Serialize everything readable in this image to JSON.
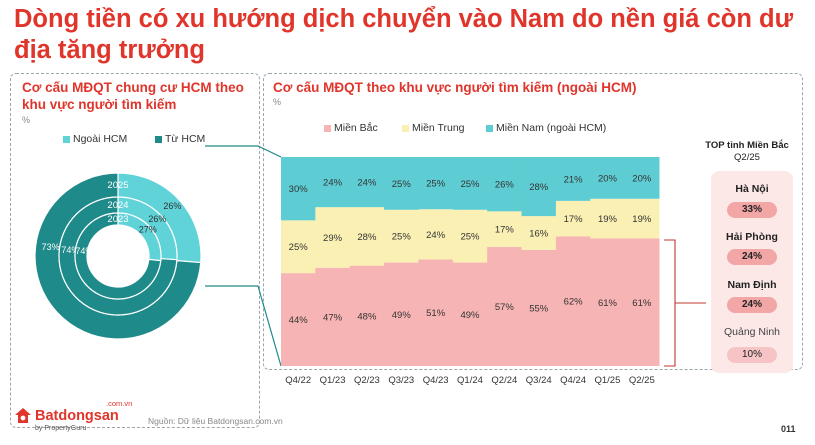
{
  "headline": "Dòng tiền có xu hướng dịch chuyển vào Nam do nền giá còn dư địa tăng trưởng",
  "left_panel": {
    "title": "Cơ cấu MĐQT chung cư HCM theo khu vực người tìm kiếm",
    "unit": "%",
    "legend": [
      "Ngoài HCM",
      "Từ HCM"
    ]
  },
  "right_panel": {
    "title": "Cơ cấu MĐQT theo khu vực người tìm kiếm (ngoài HCM)",
    "unit": "%",
    "legend": [
      "Miền Bắc",
      "Miền Trung",
      "Miền Nam (ngoài HCM)"
    ]
  },
  "top_box": {
    "title_line1": "TOP tỉnh Miền Bắc",
    "title_line2": "Q2/25",
    "provinces": [
      {
        "name": "Hà Nội",
        "value": "33%"
      },
      {
        "name": "Hải Phòng",
        "value": "24%"
      },
      {
        "name": "Nam Định",
        "value": "24%"
      },
      {
        "name": "Quảng Ninh",
        "value": "10%"
      }
    ]
  },
  "colors": {
    "accent": "#e0352b",
    "outside_hcm": "#5fd3d8",
    "from_hcm": "#1e8a8a",
    "north": "#f7b4b4",
    "central": "#faf0b4",
    "south": "#5ecdd3"
  },
  "chart_data": [
    {
      "type": "pie",
      "subtype": "multi-ring donut",
      "title": "Cơ cấu MĐQT chung cư HCM theo khu vực người tìm kiếm",
      "categories": [
        "Ngoài HCM",
        "Từ HCM"
      ],
      "rings": [
        {
          "name": "2025",
          "values": [
            26,
            73
          ],
          "labels": [
            "26%",
            "73%"
          ]
        },
        {
          "name": "2024",
          "values": [
            26,
            74
          ],
          "labels": [
            "26%",
            "74%"
          ]
        },
        {
          "name": "2023",
          "values": [
            27,
            74
          ],
          "labels": [
            "27%",
            "74%"
          ]
        }
      ]
    },
    {
      "type": "bar",
      "subtype": "100% stacked",
      "title": "Cơ cấu MĐQT theo khu vực người tìm kiếm (ngoài HCM)",
      "categories": [
        "Q4/22",
        "Q1/23",
        "Q2/23",
        "Q3/23",
        "Q4/23",
        "Q1/24",
        "Q2/24",
        "Q3/24",
        "Q4/24",
        "Q1/25",
        "Q2/25"
      ],
      "series": [
        {
          "name": "Miền Bắc",
          "values": [
            44,
            47,
            48,
            49,
            51,
            49,
            57,
            55,
            62,
            61,
            61
          ],
          "labels": [
            "44%",
            "47%",
            "48%",
            "49%",
            "51%",
            "49%",
            "57%",
            "55%",
            "62%",
            "61%",
            "61%"
          ]
        },
        {
          "name": "Miền Trung",
          "values": [
            25,
            29,
            28,
            25,
            24,
            25,
            17,
            16,
            17,
            19,
            19
          ],
          "labels": [
            "25%",
            "29%",
            "28%",
            "25%",
            "24%",
            "25%",
            "17%",
            "16%",
            "17%",
            "19%",
            "19%"
          ]
        },
        {
          "name": "Miền Nam (ngoài HCM)",
          "values": [
            30,
            24,
            24,
            25,
            25,
            25,
            26,
            28,
            21,
            20,
            20
          ],
          "labels": [
            "30%",
            "24%",
            "24%",
            "25%",
            "25%",
            "25%",
            "26%",
            "28%",
            "21%",
            "20%",
            "20%"
          ]
        }
      ],
      "ylim": [
        0,
        100
      ]
    }
  ],
  "footer": {
    "brand": "Batdongsan",
    "domain": ".com.vn",
    "by": "by PropertyGuru",
    "source": "Nguồn: Dữ liệu Batdongsan.com.vn",
    "page": "011"
  }
}
